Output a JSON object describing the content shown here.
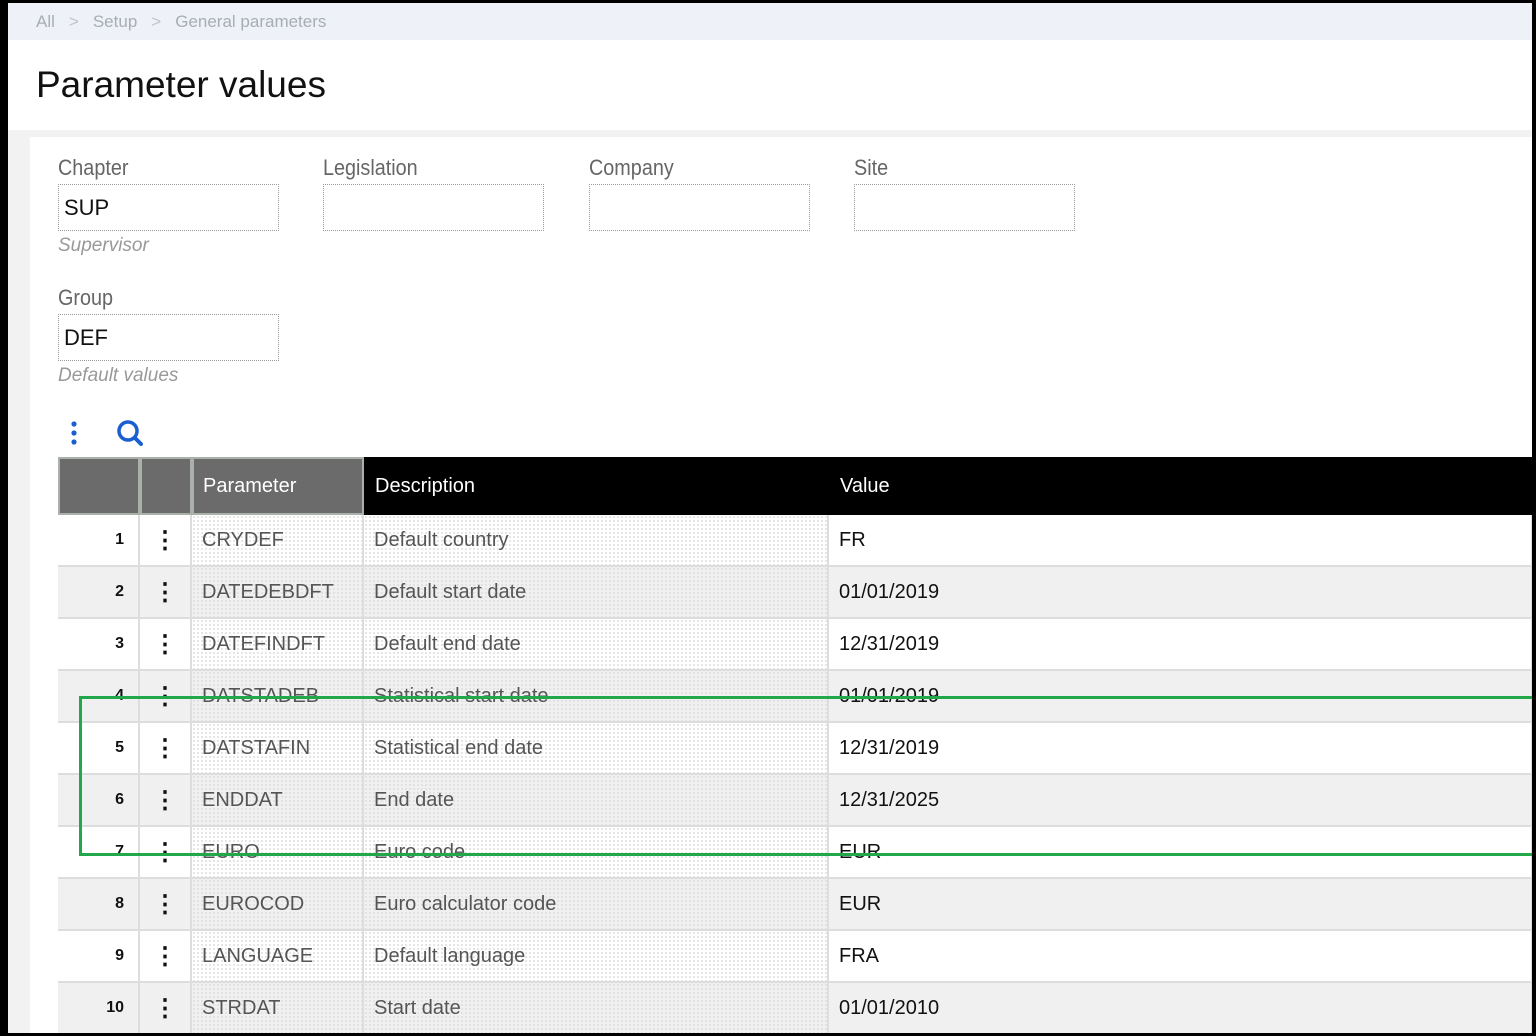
{
  "breadcrumb": [
    "All",
    "Setup",
    "General parameters"
  ],
  "page_title": "Parameter values",
  "fields": {
    "chapter": {
      "label": "Chapter",
      "value": "SUP",
      "description": "Supervisor"
    },
    "legislation": {
      "label": "Legislation",
      "value": ""
    },
    "company": {
      "label": "Company",
      "value": ""
    },
    "site": {
      "label": "Site",
      "value": ""
    },
    "group": {
      "label": "Group",
      "value": "DEF",
      "description": "Default values"
    }
  },
  "toolbar": {
    "icons": [
      "more-vertical-icon",
      "search-icon"
    ]
  },
  "table": {
    "columns": [
      "Parameter",
      "Description",
      "Value"
    ],
    "rows": [
      {
        "n": "1",
        "param": "CRYDEF",
        "desc": "Default country",
        "value": "FR"
      },
      {
        "n": "2",
        "param": "DATEDEBDFT",
        "desc": "Default start date",
        "value": "01/01/2019"
      },
      {
        "n": "3",
        "param": "DATEFINDFT",
        "desc": "Default end date",
        "value": "12/31/2019"
      },
      {
        "n": "4",
        "param": "DATSTADEB",
        "desc": "Statistical start date",
        "value": "01/01/2019"
      },
      {
        "n": "5",
        "param": "DATSTAFIN",
        "desc": "Statistical end date",
        "value": "12/31/2019"
      },
      {
        "n": "6",
        "param": "ENDDAT",
        "desc": "End date",
        "value": "12/31/2025"
      },
      {
        "n": "7",
        "param": "EURO",
        "desc": "Euro code",
        "value": "EUR"
      },
      {
        "n": "8",
        "param": "EUROCOD",
        "desc": "Euro calculator code",
        "value": "EUR"
      },
      {
        "n": "9",
        "param": "LANGUAGE",
        "desc": "Default language",
        "value": "FRA"
      },
      {
        "n": "10",
        "param": "STRDAT",
        "desc": "Start date",
        "value": "01/01/2010"
      }
    ]
  },
  "colors": {
    "highlight": "#20a84a",
    "accent": "#1a5fd0"
  }
}
